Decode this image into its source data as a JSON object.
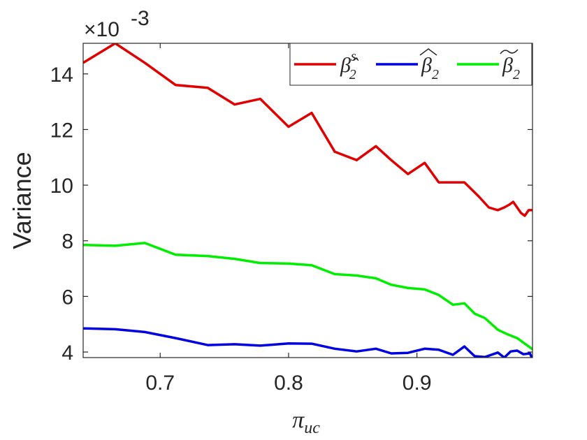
{
  "chart_data": {
    "type": "line",
    "xlabel": "π",
    "xlabel_sub": "uc",
    "ylabel": "Variance",
    "y_exponent_prefix": "×10",
    "y_exponent": "-3",
    "xlim": [
      0.64,
      0.99
    ],
    "ylim": [
      3.8,
      15.1
    ],
    "xticks": [
      "0.7",
      "0.8",
      "0.9"
    ],
    "xtick_values": [
      0.7,
      0.8,
      0.9
    ],
    "yticks": [
      "4",
      "6",
      "8",
      "10",
      "12",
      "14"
    ],
    "ytick_values": [
      4,
      6,
      8,
      10,
      12,
      14
    ],
    "grid": false,
    "legend_position": "top-right",
    "series": [
      {
        "name_base": "β̂",
        "name_sub": "2",
        "name_sup": "s",
        "color": "#e00000",
        "x": [
          0.64,
          0.665,
          0.688,
          0.712,
          0.737,
          0.758,
          0.778,
          0.8,
          0.818,
          0.836,
          0.853,
          0.868,
          0.88,
          0.893,
          0.906,
          0.917,
          0.937,
          0.948,
          0.956,
          0.963,
          0.968,
          0.972,
          0.975,
          0.978,
          0.981,
          0.984,
          0.987,
          0.99
        ],
        "values": [
          14.4,
          15.1,
          14.4,
          13.6,
          13.5,
          12.9,
          13.1,
          12.1,
          12.6,
          11.2,
          10.9,
          11.4,
          10.9,
          10.4,
          10.8,
          10.1,
          10.1,
          9.6,
          9.2,
          9.1,
          9.2,
          9.3,
          9.4,
          9.2,
          9.0,
          8.9,
          9.1,
          9.1
        ]
      },
      {
        "name_base": "β",
        "name_sub": "2",
        "name_sup": "",
        "color": "#0000e0",
        "x": [
          0.64,
          0.665,
          0.688,
          0.712,
          0.737,
          0.758,
          0.778,
          0.8,
          0.818,
          0.836,
          0.853,
          0.868,
          0.88,
          0.893,
          0.906,
          0.917,
          0.928,
          0.937,
          0.945,
          0.953,
          0.963,
          0.968,
          0.973,
          0.978,
          0.983,
          0.988,
          0.99
        ],
        "values": [
          4.85,
          4.82,
          4.72,
          4.5,
          4.25,
          4.28,
          4.23,
          4.31,
          4.3,
          4.12,
          4.02,
          4.12,
          3.95,
          3.97,
          4.12,
          4.08,
          3.9,
          4.2,
          3.85,
          3.82,
          3.98,
          3.8,
          4.02,
          4.05,
          3.92,
          3.95,
          3.75
        ]
      },
      {
        "name_base": "β",
        "name_sub": "2",
        "name_sup": "",
        "color": "#00ee00",
        "x": [
          0.64,
          0.665,
          0.688,
          0.712,
          0.737,
          0.758,
          0.778,
          0.8,
          0.818,
          0.836,
          0.853,
          0.868,
          0.88,
          0.893,
          0.906,
          0.917,
          0.928,
          0.937,
          0.945,
          0.953,
          0.963,
          0.97,
          0.978,
          0.984,
          0.99
        ],
        "values": [
          7.85,
          7.82,
          7.92,
          7.5,
          7.45,
          7.35,
          7.2,
          7.18,
          7.12,
          6.8,
          6.75,
          6.65,
          6.42,
          6.3,
          6.25,
          6.05,
          5.7,
          5.75,
          5.38,
          5.22,
          4.8,
          4.65,
          4.5,
          4.3,
          4.1
        ]
      }
    ]
  }
}
